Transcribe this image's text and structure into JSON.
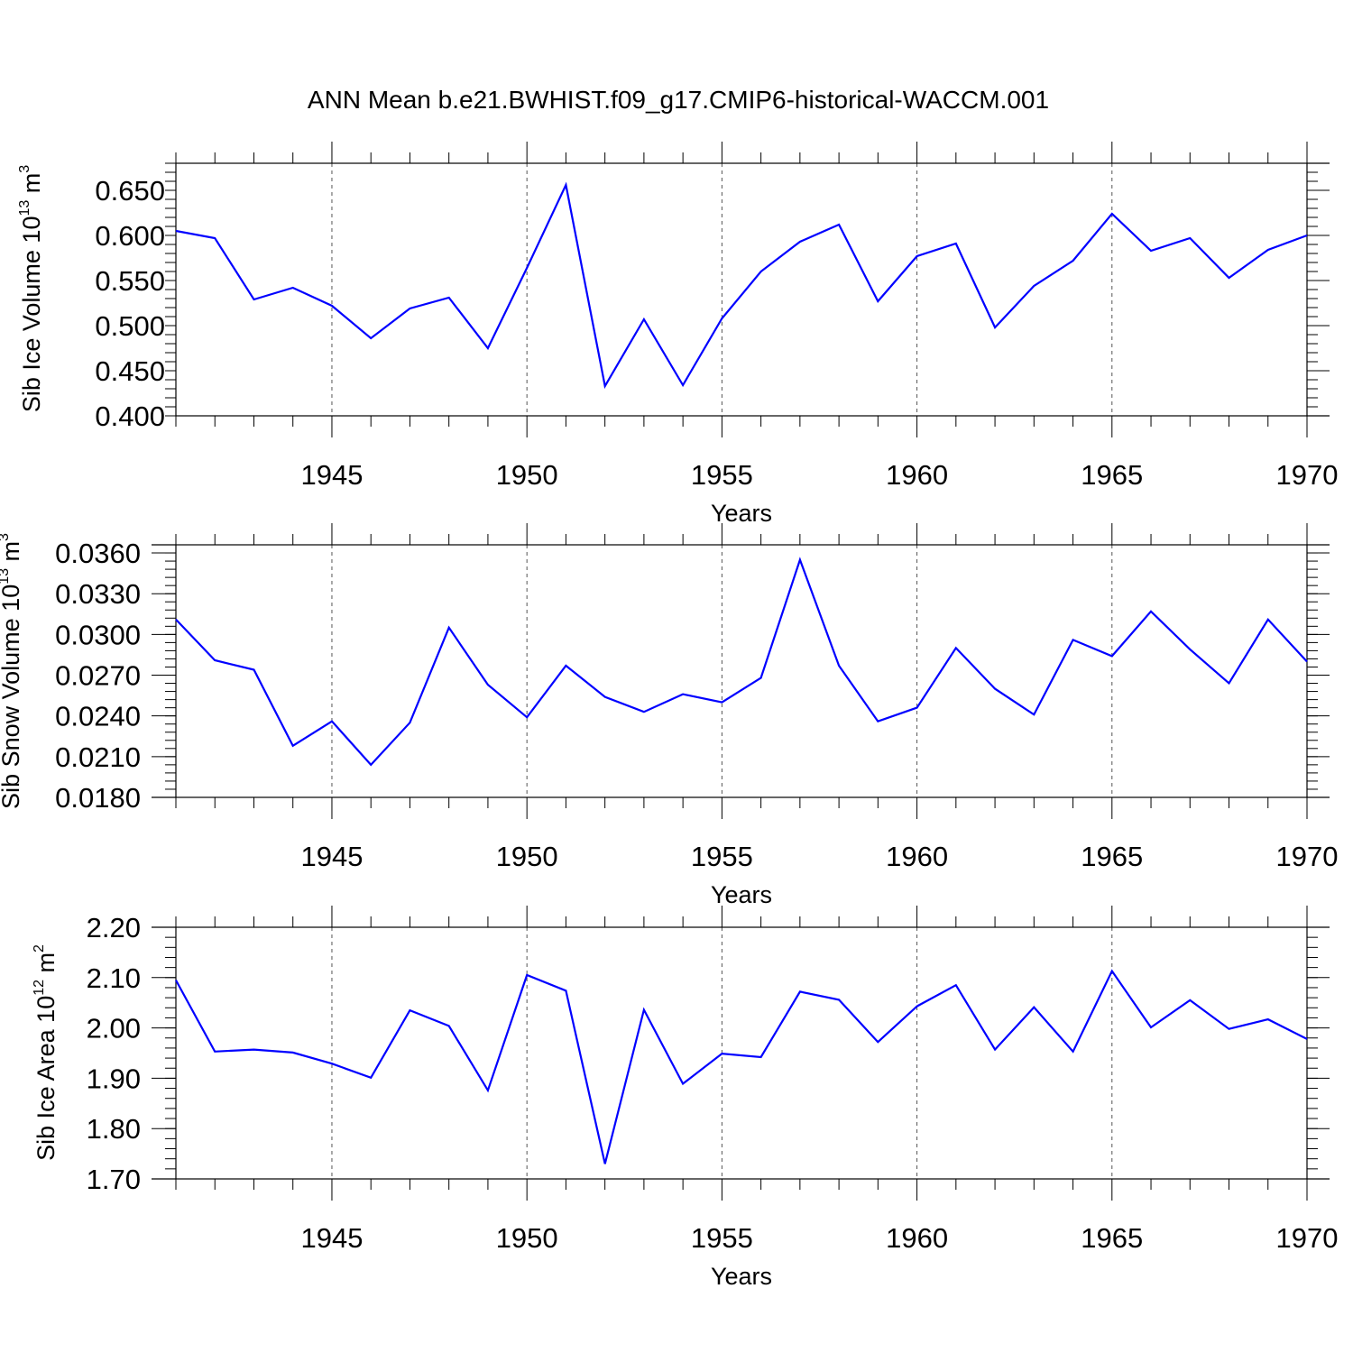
{
  "title": "ANN Mean b.e21.BWHIST.f09_g17.CMIP6-historical-WACCM.001",
  "colors": {
    "line": "#0000ff",
    "axis": "#000000",
    "grid": "#555555"
  },
  "chart_data": [
    {
      "type": "line",
      "xlabel": "Years",
      "ylabel": {
        "main": "Sib Ice Volume 10",
        "exp": "13",
        "unit": " m",
        "unit_exp": "3"
      },
      "xlim": [
        1941,
        1970
      ],
      "ylim": [
        0.4,
        0.68
      ],
      "yticks": [
        0.4,
        0.45,
        0.5,
        0.55,
        0.6,
        0.65
      ],
      "ytick_labels": [
        "0.400",
        "0.450",
        "0.500",
        "0.550",
        "0.600",
        "0.650"
      ],
      "xticks": [
        1945,
        1950,
        1955,
        1960,
        1965,
        1970
      ],
      "xtick_labels": [
        "1945",
        "1950",
        "1955",
        "1960",
        "1965",
        "1970"
      ],
      "grid": "vertical dashed at major x ticks",
      "x": [
        1941,
        1942,
        1943,
        1944,
        1945,
        1946,
        1947,
        1948,
        1949,
        1950,
        1951,
        1952,
        1953,
        1954,
        1955,
        1956,
        1957,
        1958,
        1959,
        1960,
        1961,
        1962,
        1963,
        1964,
        1965,
        1966,
        1967,
        1968,
        1969,
        1970
      ],
      "values": [
        0.605,
        0.597,
        0.529,
        0.542,
        0.522,
        0.486,
        0.519,
        0.531,
        0.475,
        0.564,
        0.656,
        0.433,
        0.507,
        0.434,
        0.508,
        0.56,
        0.593,
        0.612,
        0.527,
        0.577,
        0.591,
        0.498,
        0.544,
        0.572,
        0.624,
        0.583,
        0.597,
        0.553,
        0.584,
        0.6
      ]
    },
    {
      "type": "line",
      "xlabel": "Years",
      "ylabel": {
        "main": "Sib Snow Volume 10",
        "exp": "13",
        "unit": " m",
        "unit_exp": "3"
      },
      "xlim": [
        1941,
        1970
      ],
      "ylim": [
        0.018,
        0.0366
      ],
      "yticks": [
        0.018,
        0.021,
        0.024,
        0.027,
        0.03,
        0.033,
        0.036
      ],
      "ytick_labels": [
        "0.0180",
        "0.0210",
        "0.0240",
        "0.0270",
        "0.0300",
        "0.0330",
        "0.0360"
      ],
      "xticks": [
        1945,
        1950,
        1955,
        1960,
        1965,
        1970
      ],
      "xtick_labels": [
        "1945",
        "1950",
        "1955",
        "1960",
        "1965",
        "1970"
      ],
      "grid": "vertical dashed at major x ticks",
      "x": [
        1941,
        1942,
        1943,
        1944,
        1945,
        1946,
        1947,
        1948,
        1949,
        1950,
        1951,
        1952,
        1953,
        1954,
        1955,
        1956,
        1957,
        1958,
        1959,
        1960,
        1961,
        1962,
        1963,
        1964,
        1965,
        1966,
        1967,
        1968,
        1969,
        1970
      ],
      "values": [
        0.0311,
        0.0281,
        0.0274,
        0.0218,
        0.0236,
        0.0204,
        0.0235,
        0.0305,
        0.0263,
        0.0239,
        0.0277,
        0.0254,
        0.0243,
        0.0256,
        0.025,
        0.0268,
        0.0355,
        0.0277,
        0.0236,
        0.0246,
        0.029,
        0.026,
        0.0241,
        0.0296,
        0.0284,
        0.0317,
        0.0289,
        0.0264,
        0.0311,
        0.028
      ]
    },
    {
      "type": "line",
      "xlabel": "Years",
      "ylabel": {
        "main": "Sib Ice Area 10",
        "exp": "12",
        "unit": " m",
        "unit_exp": "2"
      },
      "xlim": [
        1941,
        1970
      ],
      "ylim": [
        1.7,
        2.2
      ],
      "yticks": [
        1.7,
        1.8,
        1.9,
        2.0,
        2.1,
        2.2
      ],
      "ytick_labels": [
        "1.70",
        "1.80",
        "1.90",
        "2.00",
        "2.10",
        "2.20"
      ],
      "xticks": [
        1945,
        1950,
        1955,
        1960,
        1965,
        1970
      ],
      "xtick_labels": [
        "1945",
        "1950",
        "1955",
        "1960",
        "1965",
        "1970"
      ],
      "grid": "vertical dashed at major x ticks",
      "x": [
        1941,
        1942,
        1943,
        1944,
        1945,
        1946,
        1947,
        1948,
        1949,
        1950,
        1951,
        1952,
        1953,
        1954,
        1955,
        1956,
        1957,
        1958,
        1959,
        1960,
        1961,
        1962,
        1963,
        1964,
        1965,
        1966,
        1967,
        1968,
        1969,
        1970
      ],
      "values": [
        2.095,
        1.953,
        1.957,
        1.951,
        1.929,
        1.901,
        2.035,
        2.004,
        1.876,
        2.105,
        2.074,
        1.73,
        2.036,
        1.889,
        1.949,
        1.942,
        2.072,
        2.056,
        1.972,
        2.043,
        2.085,
        1.957,
        2.041,
        1.953,
        2.113,
        2.001,
        2.055,
        1.998,
        2.017,
        1.978
      ]
    }
  ]
}
